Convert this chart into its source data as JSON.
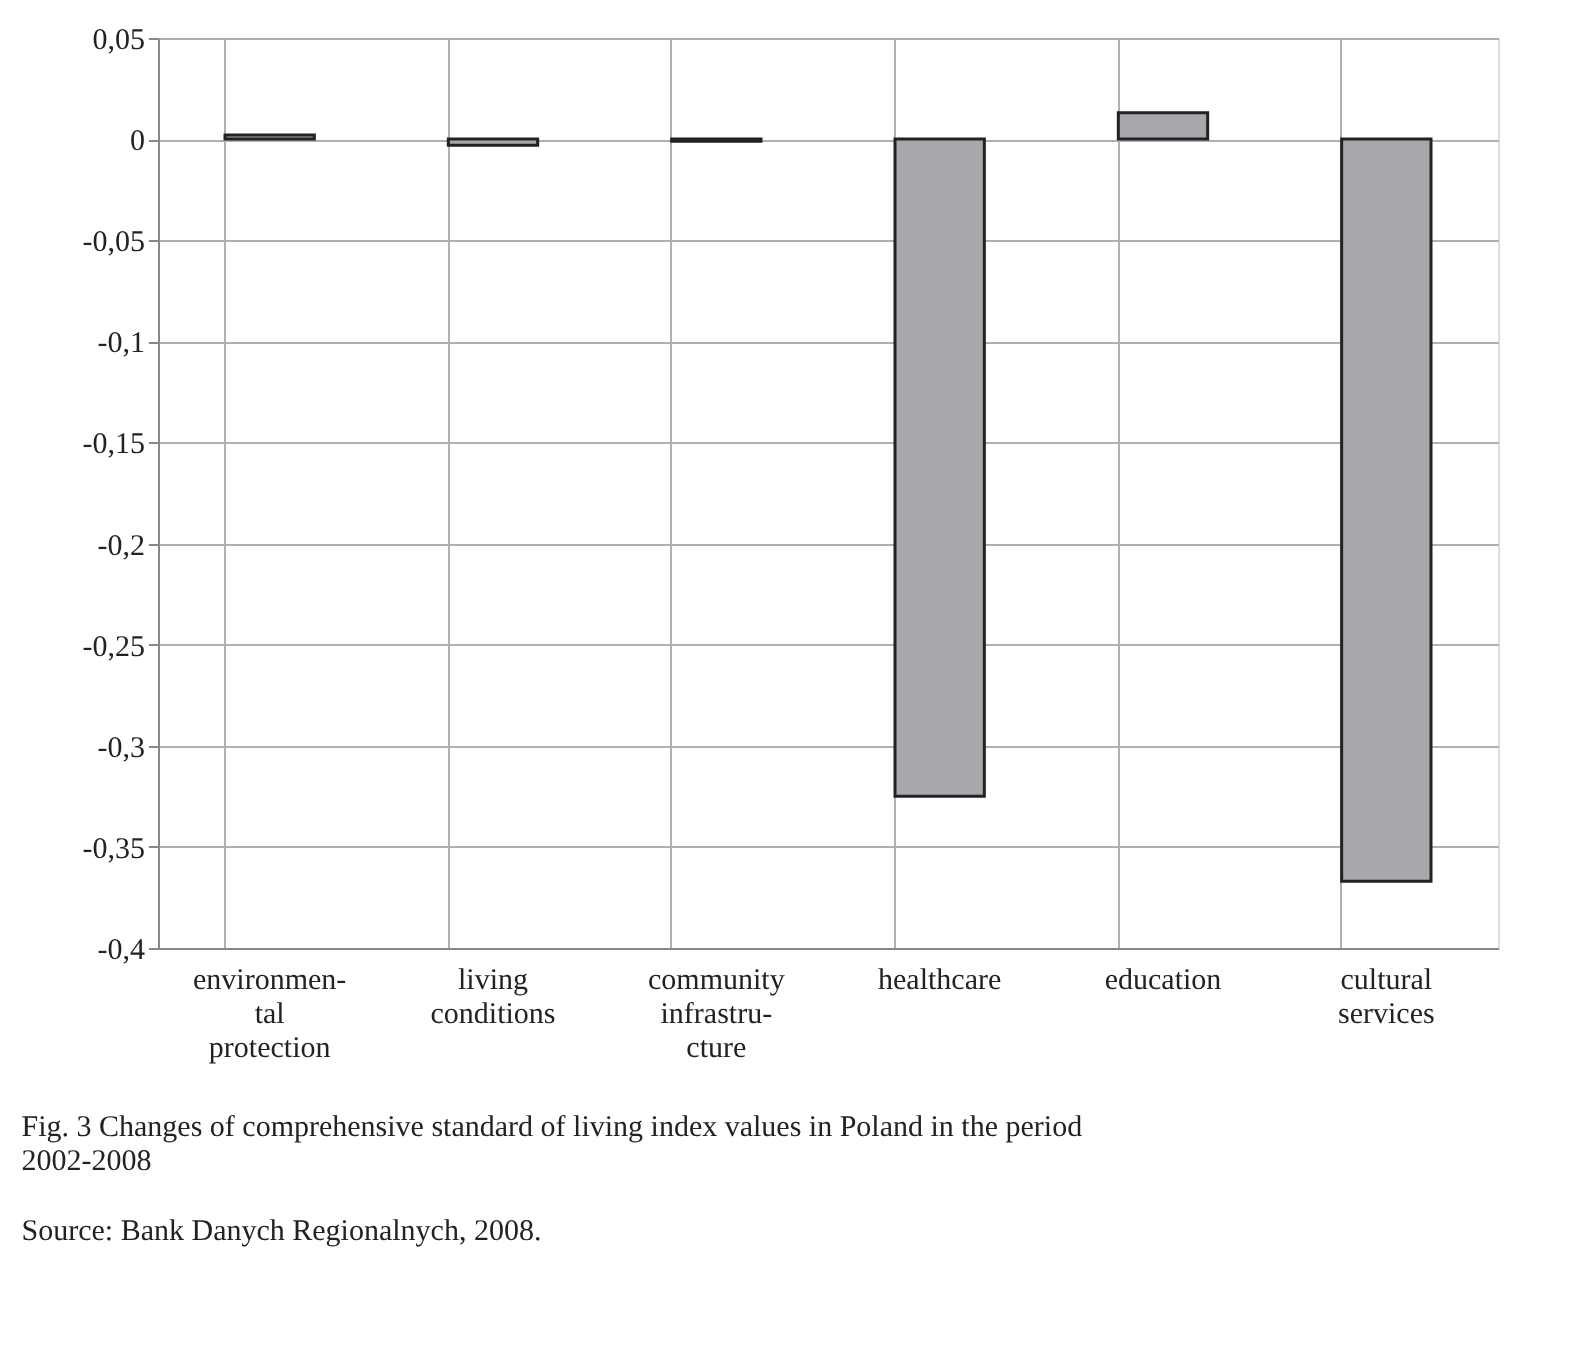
{
  "chart_data": {
    "type": "bar",
    "categories": [
      "environmen-\ntal\nprotection",
      "living\nconditions",
      "community\ninfrastru-\ncture",
      "healthcare",
      "education",
      "cultural\nservices"
    ],
    "values": [
      0.002,
      -0.003,
      -0.001,
      -0.325,
      0.013,
      -0.367
    ],
    "color": "#a6a8ab",
    "ylim": [
      -0.4,
      0.05
    ],
    "yticks": [
      {
        "value": 0.05,
        "label": "0,05"
      },
      {
        "value": 0,
        "label": "0"
      },
      {
        "value": -0.05,
        "label": "-0,05"
      },
      {
        "value": -0.1,
        "label": "-0,1"
      },
      {
        "value": -0.15,
        "label": "-0,15"
      },
      {
        "value": -0.2,
        "label": "-0,2"
      },
      {
        "value": -0.25,
        "label": "-0,25"
      },
      {
        "value": -0.3,
        "label": "-0,3"
      },
      {
        "value": -0.35,
        "label": "-0,35"
      },
      {
        "value": -0.4,
        "label": "-0,4"
      }
    ],
    "grid": true,
    "annotations": [
      "Fig. 3  Changes of comprehensive standard of living index values in Poland in the period 2002-2008",
      "Source: Bank Danych Regionalnych, 2008."
    ]
  }
}
